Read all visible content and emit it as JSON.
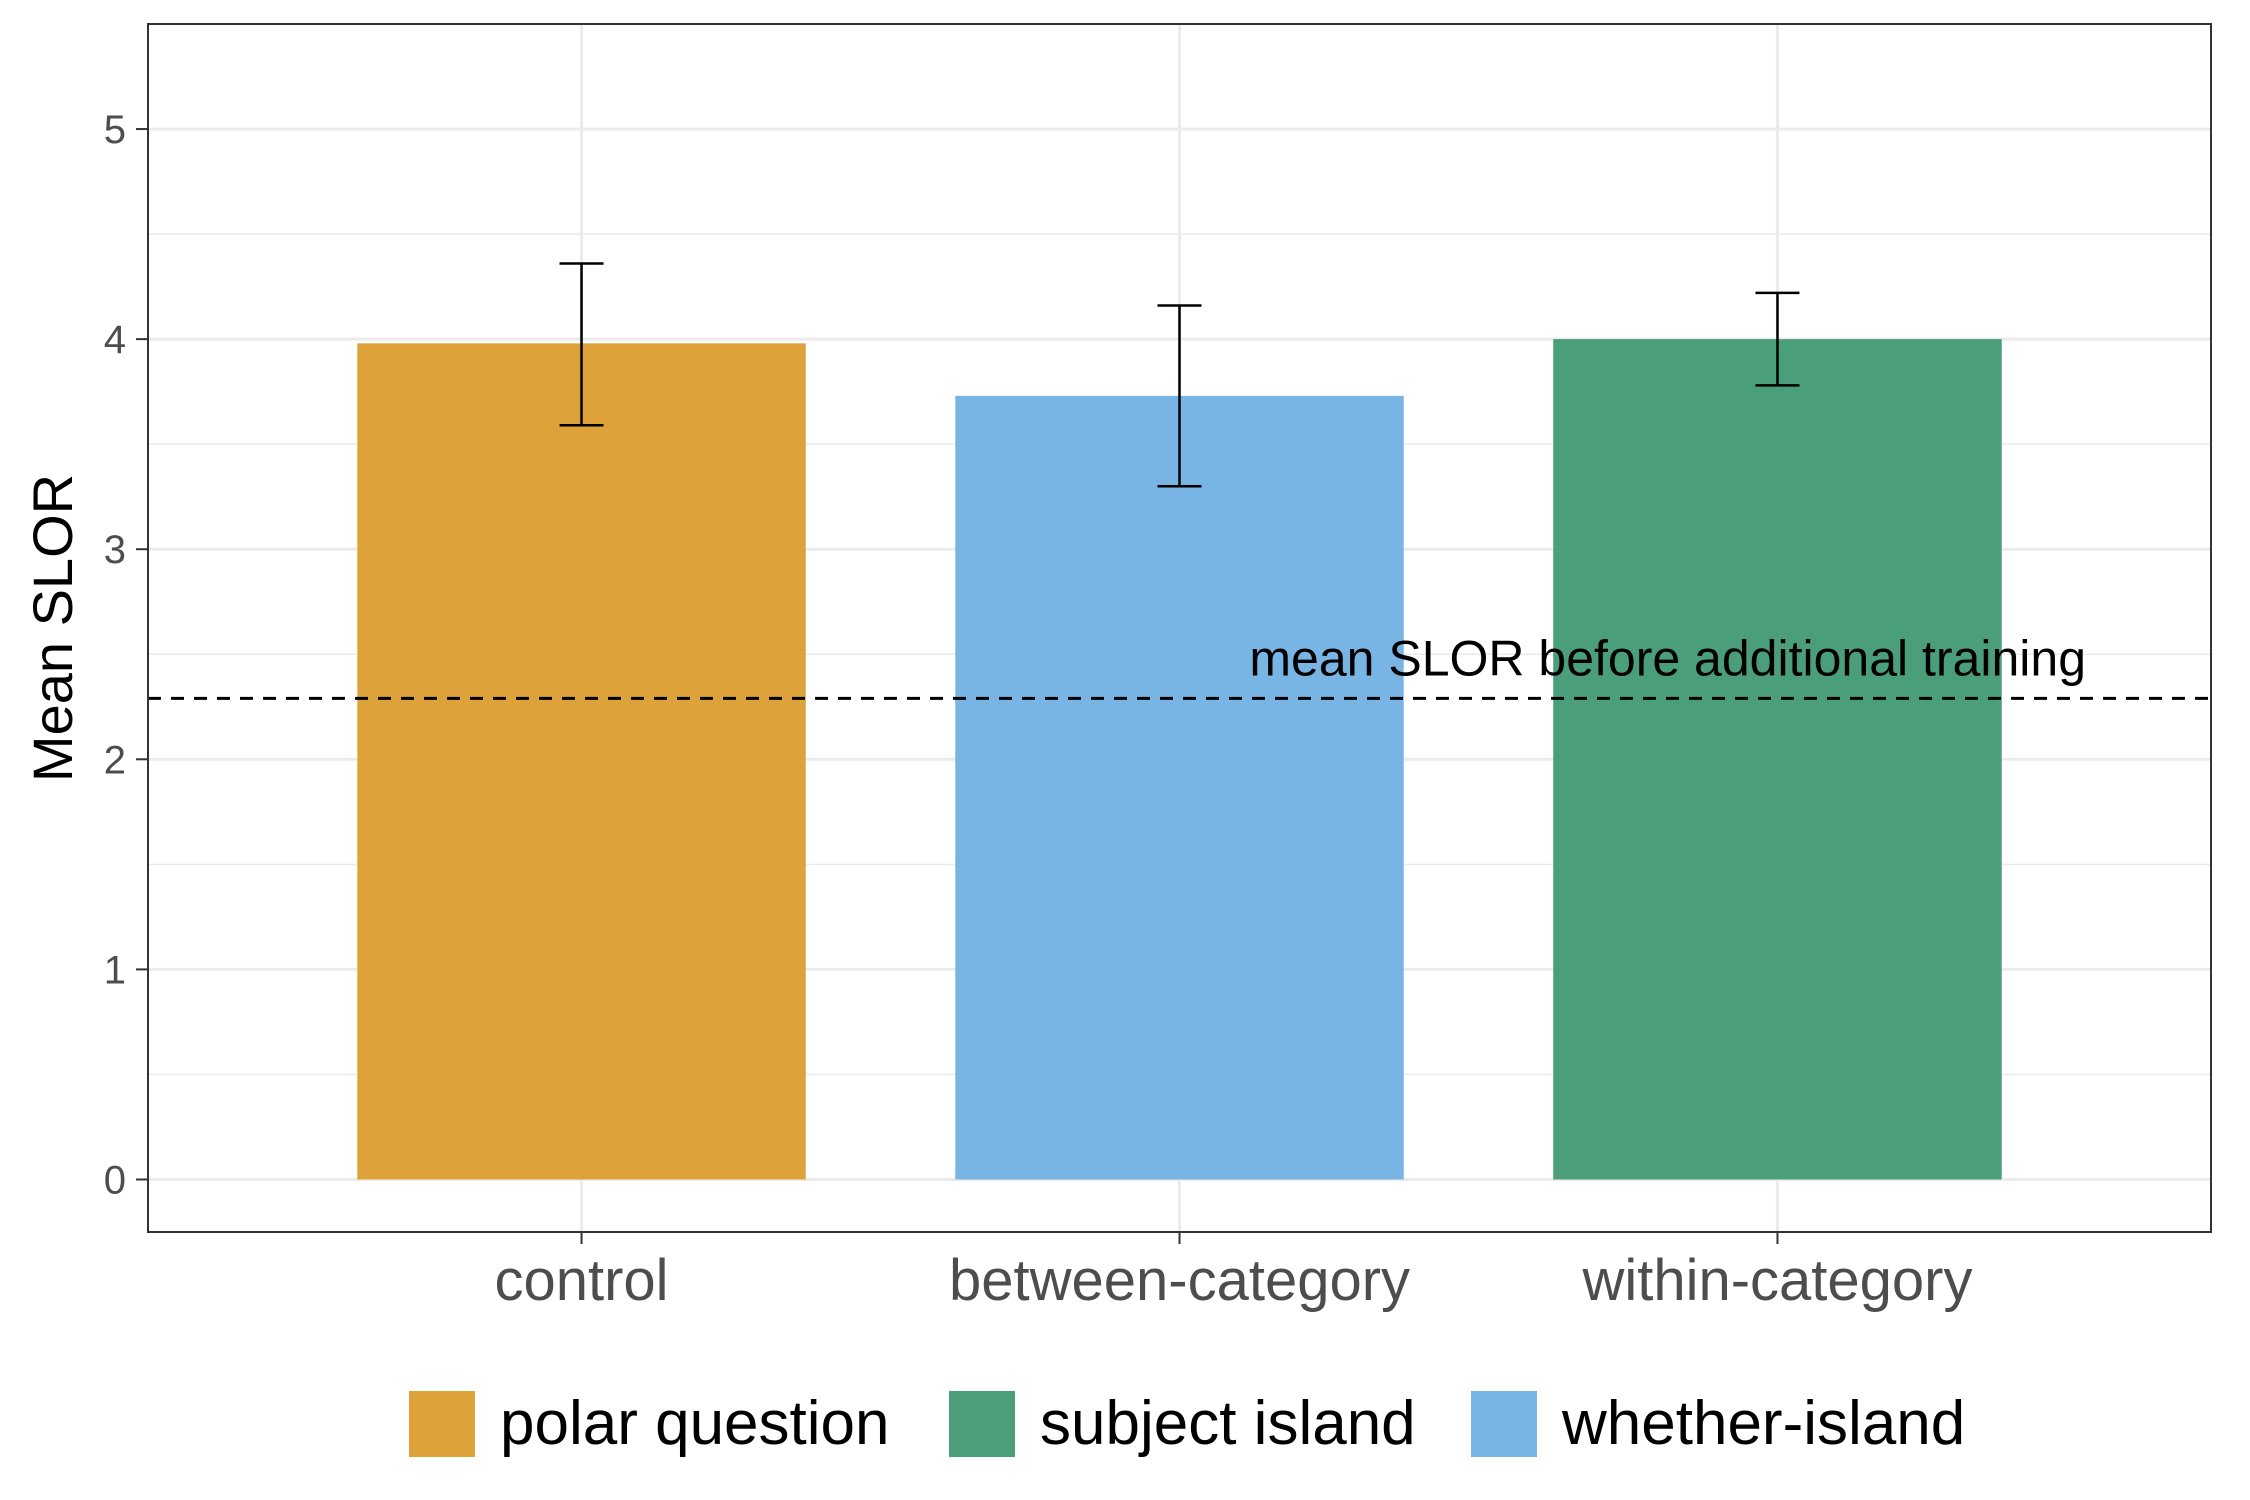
{
  "chart_data": {
    "type": "bar",
    "title": "",
    "xlabel": "",
    "ylabel": "Mean SLOR",
    "ylim": [
      -0.25,
      5.5
    ],
    "yticks": [
      0,
      1,
      2,
      3,
      4,
      5
    ],
    "grid": true,
    "categories": [
      "control",
      "between-category",
      "within-category"
    ],
    "values": [
      3.98,
      3.73,
      4.0
    ],
    "error_low": [
      3.59,
      3.3,
      3.78
    ],
    "error_high": [
      4.36,
      4.16,
      4.22
    ],
    "bar_groups": [
      "polar question",
      "whether-island",
      "subject island"
    ],
    "reference_line": {
      "value": 2.29,
      "label": "mean SLOR before additional training",
      "style": "dashed"
    },
    "legend": {
      "placement": "bottom",
      "entries": [
        {
          "label": "polar question",
          "color": "#DDA33A"
        },
        {
          "label": "subject island",
          "color": "#4A9E79"
        },
        {
          "label": "whether-island",
          "color": "#78B4E4"
        }
      ]
    }
  }
}
